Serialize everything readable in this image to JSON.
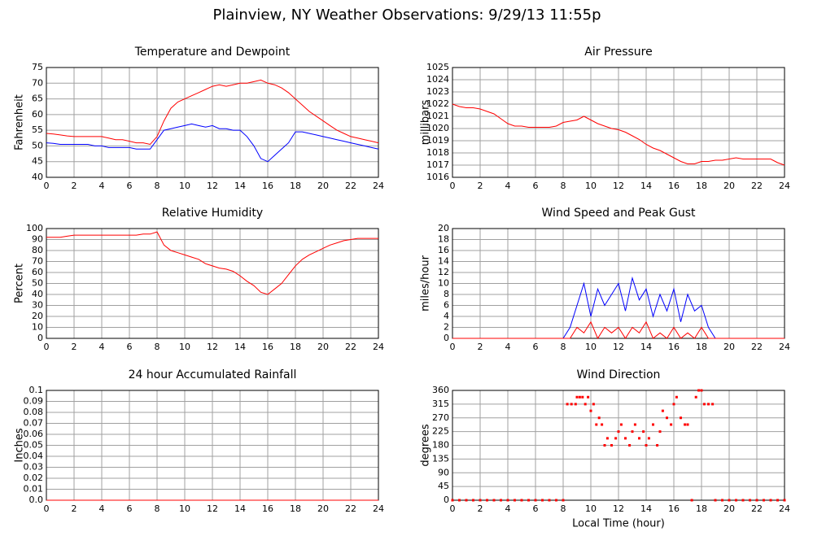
{
  "title": "Plainview, NY Weather Observations: 9/29/13 11:55p",
  "chart_data": [
    {
      "type": "line",
      "title": "Temperature and Dewpoint",
      "y_label": "Fahrenheit",
      "x": [
        0,
        0.5,
        1,
        1.5,
        2,
        2.5,
        3,
        3.5,
        4,
        4.5,
        5,
        5.5,
        6,
        6.5,
        7,
        7.5,
        8,
        8.5,
        9,
        9.5,
        10,
        10.5,
        11,
        11.5,
        12,
        12.5,
        13,
        13.5,
        14,
        14.5,
        15,
        15.5,
        16,
        16.5,
        17,
        17.5,
        18,
        18.5,
        19,
        19.5,
        20,
        20.5,
        21,
        21.5,
        22,
        22.5,
        23,
        23.5,
        24
      ],
      "series": [
        {
          "color": "#ff0000",
          "values": [
            54,
            53.8,
            53.5,
            53.2,
            53,
            53,
            53,
            53,
            53,
            52.5,
            52,
            52,
            51.5,
            51,
            51,
            50.5,
            53,
            58,
            62,
            64,
            65,
            66,
            67,
            68,
            69,
            69.5,
            69,
            69.5,
            70,
            70,
            70.5,
            71,
            70,
            69.5,
            68.5,
            67,
            65,
            63,
            61,
            59.5,
            58,
            56.5,
            55,
            54,
            53,
            52.5,
            52,
            51.5,
            51
          ]
        },
        {
          "color": "#0000ff",
          "values": [
            51,
            50.8,
            50.5,
            50.5,
            50.5,
            50.5,
            50.5,
            50,
            50,
            49.5,
            49.5,
            49.5,
            49.5,
            49,
            49,
            49,
            52,
            55,
            55.5,
            56,
            56.5,
            57,
            56.5,
            56,
            56.5,
            55.5,
            55.5,
            55,
            55,
            53,
            50,
            46,
            45,
            47,
            49,
            51,
            54.5,
            54.5,
            54,
            53.5,
            53,
            52.5,
            52,
            51.5,
            51,
            50.5,
            50,
            49.5,
            49
          ]
        }
      ],
      "xlim": [
        0,
        24
      ],
      "xticks": [
        0,
        2,
        4,
        6,
        8,
        10,
        12,
        14,
        16,
        18,
        20,
        22,
        24
      ],
      "ylim": [
        40,
        75
      ],
      "yticks": [
        40,
        45,
        50,
        55,
        60,
        65,
        70,
        75
      ],
      "grid": true
    },
    {
      "type": "line",
      "title": "Air Pressure",
      "y_label": "millibars",
      "x": [
        0,
        0.5,
        1,
        1.5,
        2,
        2.5,
        3,
        3.5,
        4,
        4.5,
        5,
        5.5,
        6,
        6.5,
        7,
        7.5,
        8,
        8.5,
        9,
        9.5,
        10,
        10.5,
        11,
        11.5,
        12,
        12.5,
        13,
        13.5,
        14,
        14.5,
        15,
        15.5,
        16,
        16.5,
        17,
        17.5,
        18,
        18.5,
        19,
        19.5,
        20,
        20.5,
        21,
        21.5,
        22,
        22.5,
        23,
        23.5,
        24
      ],
      "series": [
        {
          "color": "#ff0000",
          "values": [
            1022,
            1021.8,
            1021.7,
            1021.7,
            1021.6,
            1021.4,
            1021.2,
            1020.8,
            1020.4,
            1020.2,
            1020.2,
            1020.1,
            1020.1,
            1020.1,
            1020.1,
            1020.2,
            1020.5,
            1020.6,
            1020.7,
            1021,
            1020.7,
            1020.4,
            1020.2,
            1020,
            1019.9,
            1019.7,
            1019.4,
            1019.1,
            1018.7,
            1018.4,
            1018.2,
            1017.9,
            1017.6,
            1017.3,
            1017.1,
            1017.1,
            1017.3,
            1017.3,
            1017.4,
            1017.4,
            1017.5,
            1017.6,
            1017.5,
            1017.5,
            1017.5,
            1017.5,
            1017.5,
            1017.2,
            1017
          ]
        }
      ],
      "xlim": [
        0,
        24
      ],
      "xticks": [
        0,
        2,
        4,
        6,
        8,
        10,
        12,
        14,
        16,
        18,
        20,
        22,
        24
      ],
      "ylim": [
        1016,
        1025
      ],
      "yticks": [
        1016,
        1017,
        1018,
        1019,
        1020,
        1021,
        1022,
        1023,
        1024,
        1025
      ],
      "grid": true
    },
    {
      "type": "line",
      "title": "Relative Humidity",
      "y_label": "Percent",
      "x": [
        0,
        0.5,
        1,
        1.5,
        2,
        2.5,
        3,
        3.5,
        4,
        4.5,
        5,
        5.5,
        6,
        6.5,
        7,
        7.5,
        8,
        8.5,
        9,
        9.5,
        10,
        10.5,
        11,
        11.5,
        12,
        12.5,
        13,
        13.5,
        14,
        14.5,
        15,
        15.5,
        16,
        16.5,
        17,
        17.5,
        18,
        18.5,
        19,
        19.5,
        20,
        20.5,
        21,
        21.5,
        22,
        22.5,
        23,
        23.5,
        24
      ],
      "series": [
        {
          "color": "#ff0000",
          "values": [
            92,
            92,
            92,
            93,
            94,
            94,
            94,
            94,
            94,
            94,
            94,
            94,
            94,
            94,
            95,
            95,
            97,
            85,
            80,
            78,
            76,
            74,
            72,
            68,
            66,
            64,
            63,
            61,
            57,
            52,
            48,
            42,
            40,
            45,
            50,
            58,
            66,
            72,
            76,
            79,
            82,
            85,
            87,
            89,
            90,
            91,
            91,
            91,
            91
          ]
        }
      ],
      "xlim": [
        0,
        24
      ],
      "xticks": [
        0,
        2,
        4,
        6,
        8,
        10,
        12,
        14,
        16,
        18,
        20,
        22,
        24
      ],
      "ylim": [
        0,
        100
      ],
      "yticks": [
        0,
        10,
        20,
        30,
        40,
        50,
        60,
        70,
        80,
        90,
        100
      ],
      "grid": true
    },
    {
      "type": "line",
      "title": "Wind Speed and Peak Gust",
      "y_label": "miles/hour",
      "x": [
        0,
        0.5,
        1,
        1.5,
        2,
        2.5,
        3,
        3.5,
        4,
        4.5,
        5,
        5.5,
        6,
        6.5,
        7,
        7.5,
        8,
        8.5,
        9,
        9.5,
        10,
        10.5,
        11,
        11.5,
        12,
        12.5,
        13,
        13.5,
        14,
        14.5,
        15,
        15.5,
        16,
        16.5,
        17,
        17.5,
        18,
        18.5,
        19,
        19.5,
        20,
        20.5,
        21,
        21.5,
        22,
        22.5,
        23,
        23.5,
        24
      ],
      "series": [
        {
          "color": "#0000ff",
          "values": [
            0,
            0,
            0,
            0,
            0,
            0,
            0,
            0,
            0,
            0,
            0,
            0,
            0,
            0,
            0,
            0,
            0,
            2,
            6,
            10,
            4,
            9,
            6,
            8,
            10,
            5,
            11,
            7,
            9,
            4,
            8,
            5,
            9,
            3,
            8,
            5,
            6,
            2,
            0,
            0,
            0,
            0,
            0,
            0,
            0,
            0,
            0,
            0,
            0
          ]
        },
        {
          "color": "#ff0000",
          "values": [
            0,
            0,
            0,
            0,
            0,
            0,
            0,
            0,
            0,
            0,
            0,
            0,
            0,
            0,
            0,
            0,
            0,
            0,
            2,
            1,
            3,
            0,
            2,
            1,
            2,
            0,
            2,
            1,
            3,
            0,
            1,
            0,
            2,
            0,
            1,
            0,
            2,
            0,
            0,
            0,
            0,
            0,
            0,
            0,
            0,
            0,
            0,
            0,
            0
          ]
        }
      ],
      "xlim": [
        0,
        24
      ],
      "xticks": [
        0,
        2,
        4,
        6,
        8,
        10,
        12,
        14,
        16,
        18,
        20,
        22,
        24
      ],
      "ylim": [
        0,
        20
      ],
      "yticks": [
        0,
        2,
        4,
        6,
        8,
        10,
        12,
        14,
        16,
        18,
        20
      ],
      "grid": true
    },
    {
      "type": "line",
      "title": "24 hour Accumulated Rainfall",
      "y_label": "Inches",
      "x": [
        0,
        24
      ],
      "series": [
        {
          "color": "#ff0000",
          "values": [
            0,
            0
          ]
        }
      ],
      "xlim": [
        0,
        24
      ],
      "xticks": [
        0,
        2,
        4,
        6,
        8,
        10,
        12,
        14,
        16,
        18,
        20,
        22,
        24
      ],
      "ylim": [
        0,
        0.1
      ],
      "yticks": [
        {
          "value": 0,
          "label": "0.0"
        },
        0.01,
        0.02,
        0.03,
        0.04,
        0.05,
        0.06,
        0.07,
        0.08,
        0.09,
        0.1
      ],
      "grid": true
    },
    {
      "type": "scatter",
      "title": "Wind Direction",
      "y_label": "degrees",
      "x_label": "Local Time (hour)",
      "x": [
        0,
        0.5,
        1,
        1.5,
        2,
        2.5,
        3,
        3.5,
        4,
        4.5,
        5,
        5.5,
        6,
        6.5,
        7,
        7.5,
        8,
        8.3,
        8.6,
        8.9,
        9,
        9.2,
        9.4,
        9.6,
        9.8,
        10,
        10.2,
        10.4,
        10.6,
        10.8,
        11,
        11.2,
        11.5,
        11.8,
        12,
        12.2,
        12.5,
        12.8,
        13,
        13.2,
        13.5,
        13.8,
        14,
        14.2,
        14.5,
        14.8,
        15,
        15.2,
        15.5,
        15.8,
        16,
        16.2,
        16.5,
        16.8,
        17,
        17.3,
        17.6,
        17.8,
        18,
        18.2,
        18.5,
        18.8,
        19,
        19.5,
        20,
        20.5,
        21,
        21.5,
        22,
        22.5,
        23,
        23.5,
        24
      ],
      "series": [
        {
          "color": "#ff0000",
          "values": [
            0,
            0,
            0,
            0,
            0,
            0,
            0,
            0,
            0,
            0,
            0,
            0,
            0,
            0,
            0,
            0,
            0,
            315,
            315,
            315,
            338,
            338,
            338,
            315,
            338,
            293,
            315,
            248,
            270,
            248,
            180,
            203,
            180,
            203,
            225,
            248,
            203,
            180,
            225,
            248,
            203,
            225,
            180,
            203,
            248,
            180,
            225,
            293,
            270,
            248,
            315,
            338,
            270,
            248,
            248,
            0,
            338,
            360,
            360,
            315,
            315,
            315,
            0,
            0,
            0,
            0,
            0,
            0,
            0,
            0,
            0,
            0,
            0
          ]
        }
      ],
      "xlim": [
        0,
        24
      ],
      "xticks": [
        0,
        2,
        4,
        6,
        8,
        10,
        12,
        14,
        16,
        18,
        20,
        22,
        24
      ],
      "ylim": [
        0,
        360
      ],
      "yticks": [
        0,
        45,
        90,
        135,
        180,
        225,
        270,
        315,
        360
      ],
      "grid": true
    }
  ]
}
